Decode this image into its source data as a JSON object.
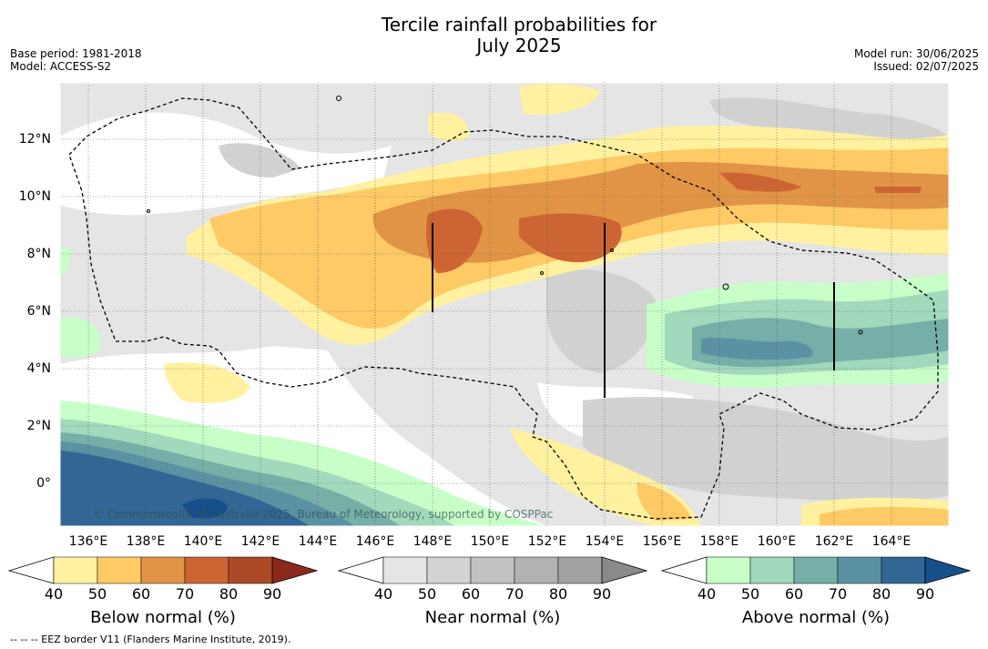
{
  "title_line1": "Tercile rainfall probabilities for",
  "title_line2": "July 2025",
  "meta_left": [
    "Base period: 1981-2018",
    "Model: ACCESS-S2"
  ],
  "meta_right": [
    "Model run: 30/06/2025",
    "Issued: 02/07/2025"
  ],
  "map": {
    "lon_labels": [
      "136°E",
      "138°E",
      "140°E",
      "142°E",
      "144°E",
      "146°E",
      "148°E",
      "150°E",
      "152°E",
      "154°E",
      "156°E",
      "158°E",
      "160°E",
      "162°E",
      "164°E"
    ],
    "lat_labels": [
      "12°N",
      "10°N",
      "8°N",
      "6°N",
      "4°N",
      "2°N",
      "0°"
    ],
    "credit": "© Commonwealth of Australia 2025, Bureau of Meteorology, supported by COSPPac",
    "colors": {
      "ocean_white": "#ffffff",
      "near40": "#e5e5e5",
      "near50": "#d1d1d1",
      "below40": "#fff1a0",
      "below50": "#fdca66",
      "below60": "#e19445",
      "below70": "#cd6433",
      "above40": "#c8ffc8",
      "above50": "#a2d8bb",
      "above60": "#76aea8",
      "above70": "#5b92a3",
      "above80": "#326694",
      "above90": "#174f8a"
    }
  },
  "colorbars": [
    {
      "label": "Below normal (%)",
      "ticks": [
        "40",
        "50",
        "60",
        "70",
        "80",
        "90"
      ],
      "colors": [
        "#fff1a0",
        "#fdca66",
        "#e19445",
        "#cd6433",
        "#ac4a28",
        "#8b2a1a"
      ]
    },
    {
      "label": "Near normal (%)",
      "ticks": [
        "40",
        "50",
        "60",
        "70",
        "80",
        "90"
      ],
      "colors": [
        "#e5e5e5",
        "#d3d3d3",
        "#c2c2c2",
        "#b2b2b2",
        "#a2a2a2",
        "#8a8a8a"
      ]
    },
    {
      "label": "Above normal (%)",
      "ticks": [
        "40",
        "50",
        "60",
        "70",
        "80",
        "90"
      ],
      "colors": [
        "#c8ffc8",
        "#a2d8bb",
        "#76aea8",
        "#5b92a3",
        "#326694",
        "#174f8a"
      ]
    }
  ],
  "footer": "-- -- -- EEZ border V11 (Flanders Marine Institute, 2019)."
}
